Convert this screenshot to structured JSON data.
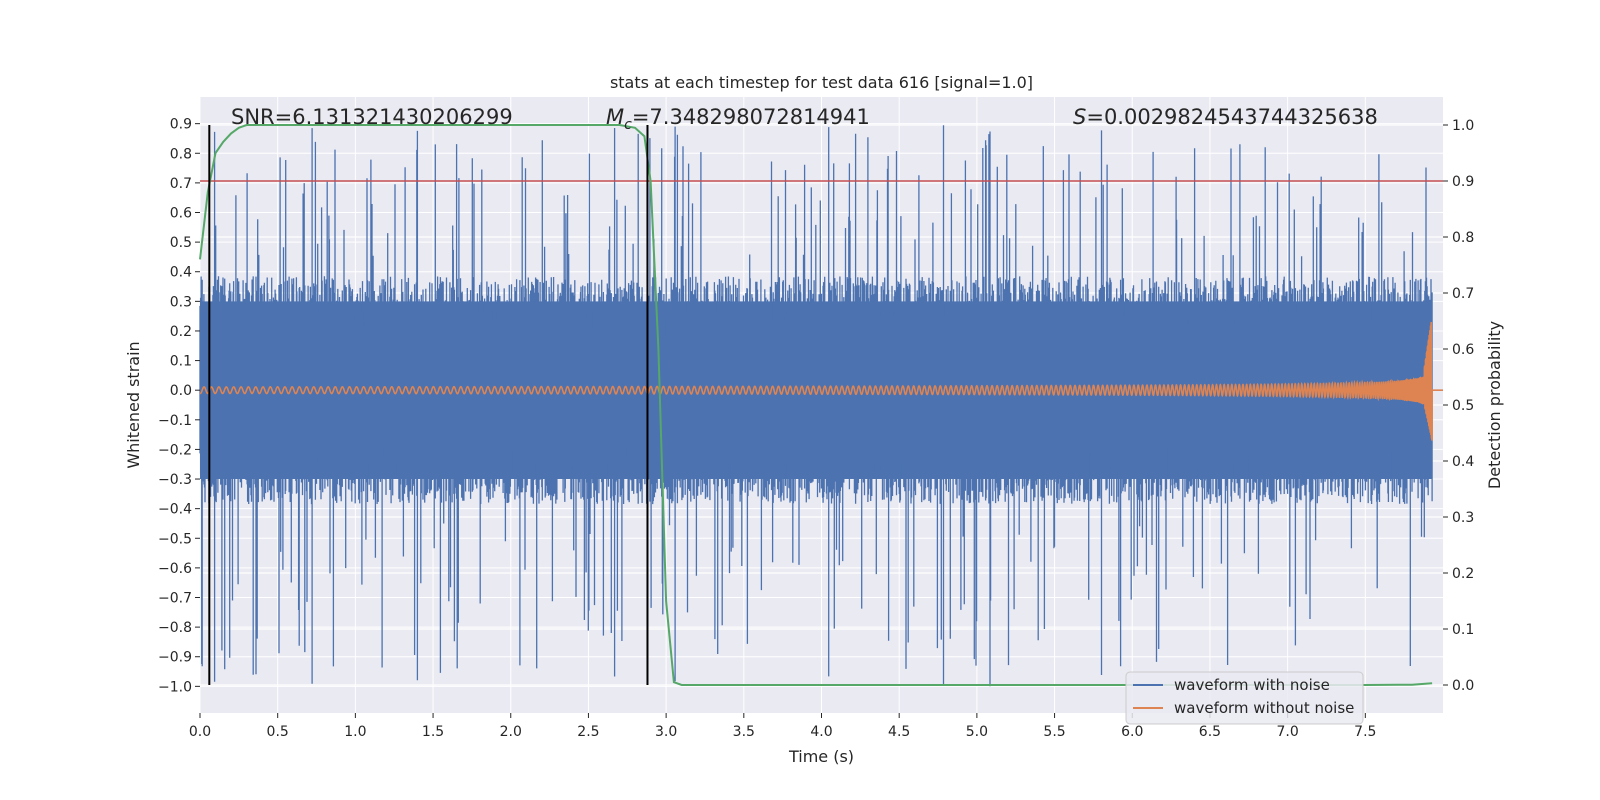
{
  "chart_data": {
    "type": "line",
    "title": "stats at each timestep for test data 616 [signal=1.0]",
    "xlabel": "Time (s)",
    "ylabel_left": "Whitened strain",
    "ylabel_right": "Detection probability",
    "xlim": [
      0.0,
      8.0
    ],
    "ylim_left": [
      -1.09,
      0.99
    ],
    "ylim_right": [
      -0.05,
      1.05
    ],
    "x_ticks": [
      0.0,
      0.5,
      1.0,
      1.5,
      2.0,
      2.5,
      3.0,
      3.5,
      4.0,
      4.5,
      5.0,
      5.5,
      6.0,
      6.5,
      7.0,
      7.5
    ],
    "x_tick_labels": [
      "0.0",
      "0.5",
      "1.0",
      "1.5",
      "2.0",
      "2.5",
      "3.0",
      "3.5",
      "4.0",
      "4.5",
      "5.0",
      "5.5",
      "6.0",
      "6.5",
      "7.0",
      "7.5"
    ],
    "y_left_ticks": [
      0.9,
      0.8,
      0.7,
      0.6,
      0.5,
      0.4,
      0.3,
      0.2,
      0.1,
      0.0,
      -0.1,
      -0.2,
      -0.3,
      -0.4,
      -0.5,
      -0.6,
      -0.7,
      -0.8,
      -0.9,
      -1.0
    ],
    "y_left_tick_labels": [
      "0.9",
      "0.8",
      "0.7",
      "0.6",
      "0.5",
      "0.4",
      "0.3",
      "0.2",
      "0.1",
      "0.0",
      "−0.1",
      "−0.2",
      "−0.3",
      "−0.4",
      "−0.5",
      "−0.6",
      "−0.7",
      "−0.8",
      "−0.9",
      "−1.0"
    ],
    "y_right_ticks": [
      1.0,
      0.9,
      0.8,
      0.7,
      0.6,
      0.5,
      0.4,
      0.3,
      0.2,
      0.1,
      0.0
    ],
    "y_right_tick_labels": [
      "1.0",
      "0.9",
      "0.8",
      "0.7",
      "0.6",
      "0.5",
      "0.4",
      "0.3",
      "0.2",
      "0.1",
      "0.0"
    ],
    "threshold": 0.9,
    "vlines": [
      0.06,
      2.88
    ],
    "annotations": {
      "snr": "SNR=6.131321430206299",
      "mc_symbol": "M",
      "mc_sub": "c",
      "mc_value": "=7.348298072814941",
      "s_symbol": "S",
      "s_value": "=0.0029824543744325638"
    },
    "series": [
      {
        "name": "waveform with noise",
        "axis": "left",
        "color": "#4c72b0",
        "amplitude_range": [
          -1.0,
          0.9
        ],
        "seed": 616
      },
      {
        "name": "waveform without noise",
        "axis": "left",
        "color": "#dd8452",
        "chirp_start": 0.0,
        "merger_time": 7.93,
        "peak_amplitude": 0.25,
        "min_amplitude": -0.17
      },
      {
        "name": "detection probability",
        "axis": "right",
        "color": "#55a868",
        "x": [
          0.0,
          0.05,
          0.1,
          0.15,
          0.2,
          0.25,
          0.3,
          0.35,
          0.4,
          0.5,
          1.0,
          2.0,
          2.5,
          2.7,
          2.8,
          2.86,
          2.9,
          2.95,
          3.0,
          3.05,
          3.1,
          3.2,
          5.0,
          7.5,
          7.8,
          7.93
        ],
        "y": [
          0.76,
          0.88,
          0.95,
          0.97,
          0.985,
          0.995,
          1.0,
          1.0,
          1.0,
          1.0,
          1.0,
          1.0,
          1.0,
          1.0,
          0.995,
          0.98,
          0.9,
          0.6,
          0.15,
          0.005,
          0.0,
          0.0,
          0.0,
          0.0,
          0.0005,
          0.003
        ]
      },
      {
        "name": "threshold",
        "axis": "right",
        "color": "#c44e52",
        "value": 0.9
      }
    ],
    "legend": {
      "position": "lower-right",
      "entries": [
        "waveform with noise",
        "waveform without noise"
      ]
    },
    "grid": true
  },
  "colors": {
    "axes_bg": "#eaeaf2",
    "grid": "#ffffff",
    "noise": "#4c72b0",
    "clean": "#dd8452",
    "prob": "#55a868",
    "threshold": "#c44e52"
  }
}
